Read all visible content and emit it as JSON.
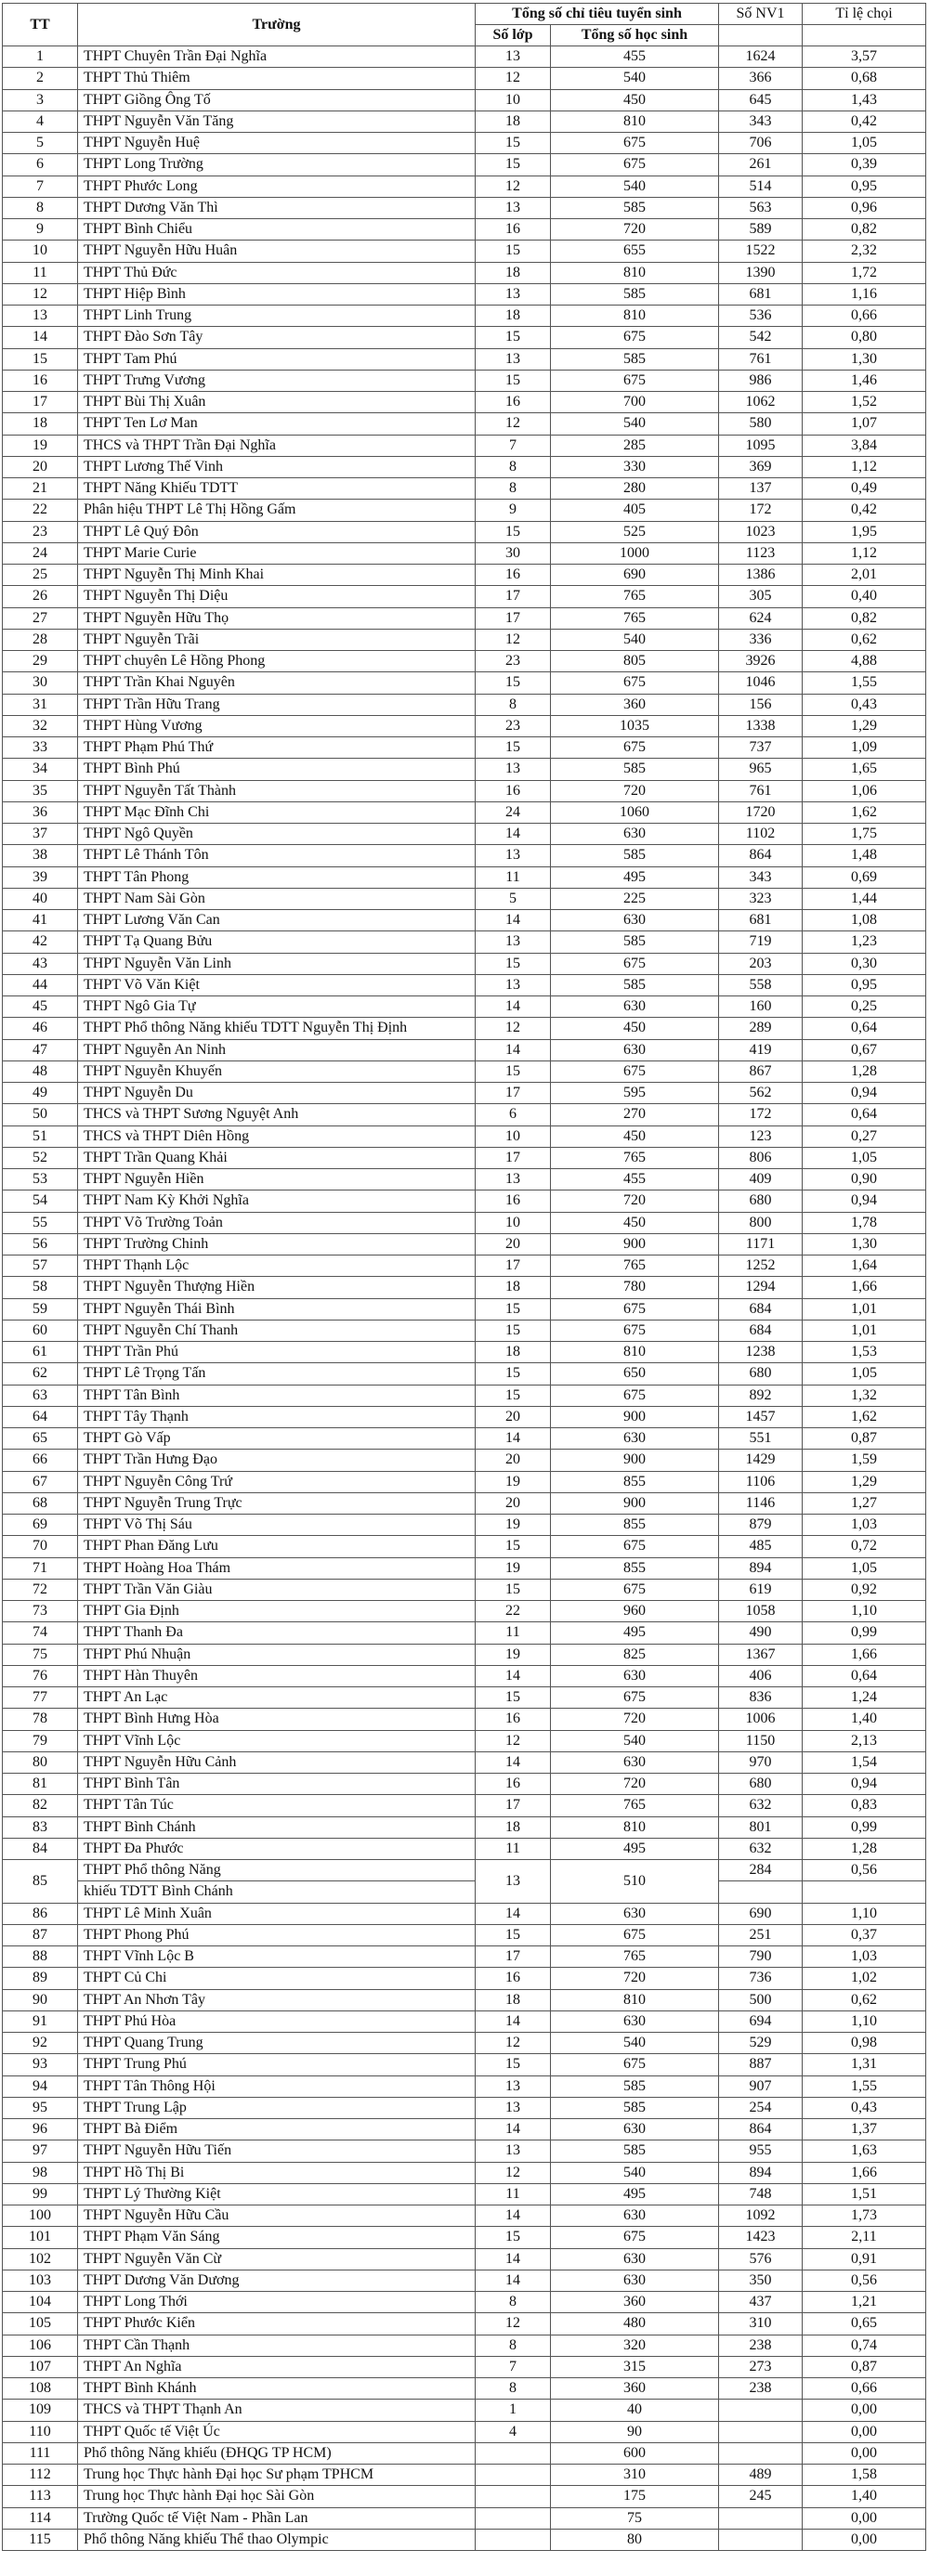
{
  "header": {
    "tt": "TT",
    "truong": "Trường",
    "group": "Tổng số chỉ tiêu tuyển sinh",
    "so_lop": "Số lớp",
    "tong_hs": "Tổng số học sinh",
    "nv1": "Số NV1",
    "ti_le": "Tỉ lệ chọi"
  },
  "rows": [
    [
      "1",
      "THPT Chuyên Trần Đại Nghĩa",
      "13",
      "455",
      "1624",
      "3,57"
    ],
    [
      "2",
      "THPT Thủ Thiêm",
      "12",
      "540",
      "366",
      "0,68"
    ],
    [
      "3",
      "THPT Giồng Ông Tố",
      "10",
      "450",
      "645",
      "1,43"
    ],
    [
      "4",
      "THPT Nguyễn Văn Tăng",
      "18",
      "810",
      "343",
      "0,42"
    ],
    [
      "5",
      "THPT Nguyễn Huệ",
      "15",
      "675",
      "706",
      "1,05"
    ],
    [
      "6",
      "THPT Long Trường",
      "15",
      "675",
      "261",
      "0,39"
    ],
    [
      "7",
      "THPT Phước Long",
      "12",
      "540",
      "514",
      "0,95"
    ],
    [
      "8",
      "THPT Dương Văn Thì",
      "13",
      "585",
      "563",
      "0,96"
    ],
    [
      "9",
      "THPT Bình Chiểu",
      "16",
      "720",
      "589",
      "0,82"
    ],
    [
      "10",
      "THPT Nguyễn Hữu Huân",
      "15",
      "655",
      "1522",
      "2,32"
    ],
    [
      "11",
      "THPT Thủ Đức",
      "18",
      "810",
      "1390",
      "1,72"
    ],
    [
      "12",
      "THPT Hiệp Bình",
      "13",
      "585",
      "681",
      "1,16"
    ],
    [
      "13",
      "THPT Linh Trung",
      "18",
      "810",
      "536",
      "0,66"
    ],
    [
      "14",
      "THPT Đào Sơn Tây",
      "15",
      "675",
      "542",
      "0,80"
    ],
    [
      "15",
      "THPT Tam Phú",
      "13",
      "585",
      "761",
      "1,30"
    ],
    [
      "16",
      "THPT Trưng Vương",
      "15",
      "675",
      "986",
      "1,46"
    ],
    [
      "17",
      "THPT Bùi Thị Xuân",
      "16",
      "700",
      "1062",
      "1,52"
    ],
    [
      "18",
      "THPT Ten Lơ Man",
      "12",
      "540",
      "580",
      "1,07"
    ],
    [
      "19",
      "THCS và THPT Trần Đại Nghĩa",
      "7",
      "285",
      "1095",
      "3,84"
    ],
    [
      "20",
      "THPT Lương Thế Vinh",
      "8",
      "330",
      "369",
      "1,12"
    ],
    [
      "21",
      "THPT Năng Khiếu TDTT",
      "8",
      "280",
      "137",
      "0,49"
    ],
    [
      "22",
      "Phân hiệu THPT Lê Thị Hồng Gấm",
      "9",
      "405",
      "172",
      "0,42"
    ],
    [
      "23",
      "THPT Lê Quý Đôn",
      "15",
      "525",
      "1023",
      "1,95"
    ],
    [
      "24",
      "THPT Marie Curie",
      "30",
      "1000",
      "1123",
      "1,12"
    ],
    [
      "25",
      "THPT Nguyễn Thị Minh Khai",
      "16",
      "690",
      "1386",
      "2,01"
    ],
    [
      "26",
      "THPT Nguyễn Thị Diệu",
      "17",
      "765",
      "305",
      "0,40"
    ],
    [
      "27",
      "THPT Nguyễn Hữu Thọ",
      "17",
      "765",
      "624",
      "0,82"
    ],
    [
      "28",
      "THPT Nguyễn Trãi",
      "12",
      "540",
      "336",
      "0,62"
    ],
    [
      "29",
      "THPT chuyên Lê Hồng Phong",
      "23",
      "805",
      "3926",
      "4,88"
    ],
    [
      "30",
      "THPT Trần Khai Nguyên",
      "15",
      "675",
      "1046",
      "1,55"
    ],
    [
      "31",
      "THPT Trần Hữu Trang",
      "8",
      "360",
      "156",
      "0,43"
    ],
    [
      "32",
      "THPT Hùng Vương",
      "23",
      "1035",
      "1338",
      "1,29"
    ],
    [
      "33",
      "THPT Phạm Phú Thứ",
      "15",
      "675",
      "737",
      "1,09"
    ],
    [
      "34",
      "THPT Bình Phú",
      "13",
      "585",
      "965",
      "1,65"
    ],
    [
      "35",
      "THPT Nguyễn Tất Thành",
      "16",
      "720",
      "761",
      "1,06"
    ],
    [
      "36",
      "THPT Mạc Đĩnh Chi",
      "24",
      "1060",
      "1720",
      "1,62"
    ],
    [
      "37",
      "THPT Ngô Quyền",
      "14",
      "630",
      "1102",
      "1,75"
    ],
    [
      "38",
      "THPT Lê Thánh Tôn",
      "13",
      "585",
      "864",
      "1,48"
    ],
    [
      "39",
      "THPT Tân Phong",
      "11",
      "495",
      "343",
      "0,69"
    ],
    [
      "40",
      "THPT Nam Sài Gòn",
      "5",
      "225",
      "323",
      "1,44"
    ],
    [
      "41",
      "THPT Lương Văn Can",
      "14",
      "630",
      "681",
      "1,08"
    ],
    [
      "42",
      "THPT Tạ Quang Bửu",
      "13",
      "585",
      "719",
      "1,23"
    ],
    [
      "43",
      "THPT Nguyễn Văn Linh",
      "15",
      "675",
      "203",
      "0,30"
    ],
    [
      "44",
      "THPT Võ Văn Kiệt",
      "13",
      "585",
      "558",
      "0,95"
    ],
    [
      "45",
      "THPT Ngô Gia Tự",
      "14",
      "630",
      "160",
      "0,25"
    ],
    [
      "46",
      "THPT Phổ thông Năng khiếu TDTT Nguyễn Thị Định",
      "12",
      "450",
      "289",
      "0,64"
    ],
    [
      "47",
      "THPT Nguyễn An Ninh",
      "14",
      "630",
      "419",
      "0,67"
    ],
    [
      "48",
      "THPT Nguyễn Khuyến",
      "15",
      "675",
      "867",
      "1,28"
    ],
    [
      "49",
      "THPT Nguyễn Du",
      "17",
      "595",
      "562",
      "0,94"
    ],
    [
      "50",
      "THCS và THPT Sương Nguyệt Anh",
      "6",
      "270",
      "172",
      "0,64"
    ],
    [
      "51",
      "THCS và THPT Diên Hồng",
      "10",
      "450",
      "123",
      "0,27"
    ],
    [
      "52",
      "THPT Trần Quang Khải",
      "17",
      "765",
      "806",
      "1,05"
    ],
    [
      "53",
      "THPT Nguyễn Hiền",
      "13",
      "455",
      "409",
      "0,90"
    ],
    [
      "54",
      "THPT Nam Kỳ Khởi Nghĩa",
      "16",
      "720",
      "680",
      "0,94"
    ],
    [
      "55",
      "THPT Võ Trường Toản",
      "10",
      "450",
      "800",
      "1,78"
    ],
    [
      "56",
      "THPT Trường Chinh",
      "20",
      "900",
      "1171",
      "1,30"
    ],
    [
      "57",
      "THPT Thạnh Lộc",
      "17",
      "765",
      "1252",
      "1,64"
    ],
    [
      "58",
      "THPT Nguyễn Thượng Hiền",
      "18",
      "780",
      "1294",
      "1,66"
    ],
    [
      "59",
      "THPT Nguyễn Thái Bình",
      "15",
      "675",
      "684",
      "1,01"
    ],
    [
      "60",
      "THPT Nguyễn Chí Thanh",
      "15",
      "675",
      "684",
      "1,01"
    ],
    [
      "61",
      "THPT Trần Phú",
      "18",
      "810",
      "1238",
      "1,53"
    ],
    [
      "62",
      "THPT Lê Trọng Tấn",
      "15",
      "650",
      "680",
      "1,05"
    ],
    [
      "63",
      "THPT Tân Bình",
      "15",
      "675",
      "892",
      "1,32"
    ],
    [
      "64",
      "THPT Tây Thạnh",
      "20",
      "900",
      "1457",
      "1,62"
    ],
    [
      "65",
      "THPT Gò Vấp",
      "14",
      "630",
      "551",
      "0,87"
    ],
    [
      "66",
      "THPT Trần Hưng Đạo",
      "20",
      "900",
      "1429",
      "1,59"
    ],
    [
      "67",
      "THPT Nguyễn Công Trứ",
      "19",
      "855",
      "1106",
      "1,29"
    ],
    [
      "68",
      "THPT Nguyễn Trung Trực",
      "20",
      "900",
      "1146",
      "1,27"
    ],
    [
      "69",
      "THPT Võ Thị Sáu",
      "19",
      "855",
      "879",
      "1,03"
    ],
    [
      "70",
      "THPT Phan Đăng Lưu",
      "15",
      "675",
      "485",
      "0,72"
    ],
    [
      "71",
      "THPT Hoàng Hoa Thám",
      "19",
      "855",
      "894",
      "1,05"
    ],
    [
      "72",
      "THPT Trần Văn Giàu",
      "15",
      "675",
      "619",
      "0,92"
    ],
    [
      "73",
      "THPT Gia Định",
      "22",
      "960",
      "1058",
      "1,10"
    ],
    [
      "74",
      "THPT Thanh Đa",
      "11",
      "495",
      "490",
      "0,99"
    ],
    [
      "75",
      "THPT Phú Nhuận",
      "19",
      "825",
      "1367",
      "1,66"
    ],
    [
      "76",
      "THPT Hàn Thuyên",
      "14",
      "630",
      "406",
      "0,64"
    ],
    [
      "77",
      "THPT An Lạc",
      "15",
      "675",
      "836",
      "1,24"
    ],
    [
      "78",
      "THPT Bình Hưng Hòa",
      "16",
      "720",
      "1006",
      "1,40"
    ],
    [
      "79",
      "THPT Vĩnh Lộc",
      "12",
      "540",
      "1150",
      "2,13"
    ],
    [
      "80",
      "THPT Nguyễn Hữu Cảnh",
      "14",
      "630",
      "970",
      "1,54"
    ],
    [
      "81",
      "THPT Bình Tân",
      "16",
      "720",
      "680",
      "0,94"
    ],
    [
      "82",
      "THPT Tân Túc",
      "17",
      "765",
      "632",
      "0,83"
    ],
    [
      "83",
      "THPT Bình Chánh",
      "18",
      "810",
      "801",
      "0,99"
    ],
    [
      "84",
      "THPT Đa Phước",
      "11",
      "495",
      "632",
      "1,28"
    ],
    [
      "85",
      [
        "THPT Phổ thông Năng",
        "khiếu TDTT Bình Chánh"
      ],
      "13",
      "510",
      "284",
      "0,56"
    ],
    [
      "86",
      "THPT Lê Minh Xuân",
      "14",
      "630",
      "690",
      "1,10"
    ],
    [
      "87",
      "THPT Phong Phú",
      "15",
      "675",
      "251",
      "0,37"
    ],
    [
      "88",
      "THPT Vĩnh Lộc B",
      "17",
      "765",
      "790",
      "1,03"
    ],
    [
      "89",
      "THPT Củ Chi",
      "16",
      "720",
      "736",
      "1,02"
    ],
    [
      "90",
      "THPT An Nhơn Tây",
      "18",
      "810",
      "500",
      "0,62"
    ],
    [
      "91",
      "THPT Phú Hòa",
      "14",
      "630",
      "694",
      "1,10"
    ],
    [
      "92",
      "THPT Quang Trung",
      "12",
      "540",
      "529",
      "0,98"
    ],
    [
      "93",
      "THPT Trung Phú",
      "15",
      "675",
      "887",
      "1,31"
    ],
    [
      "94",
      "THPT Tân Thông Hội",
      "13",
      "585",
      "907",
      "1,55"
    ],
    [
      "95",
      "THPT Trung Lập",
      "13",
      "585",
      "254",
      "0,43"
    ],
    [
      "96",
      "THPT Bà Điểm",
      "14",
      "630",
      "864",
      "1,37"
    ],
    [
      "97",
      "THPT Nguyễn Hữu Tiến",
      "13",
      "585",
      "955",
      "1,63"
    ],
    [
      "98",
      "THPT Hồ Thị Bi",
      "12",
      "540",
      "894",
      "1,66"
    ],
    [
      "99",
      "THPT Lý Thường Kiệt",
      "11",
      "495",
      "748",
      "1,51"
    ],
    [
      "100",
      "THPT Nguyễn Hữu Cầu",
      "14",
      "630",
      "1092",
      "1,73"
    ],
    [
      "101",
      "THPT Phạm Văn Sáng",
      "15",
      "675",
      "1423",
      "2,11"
    ],
    [
      "102",
      "THPT Nguyễn Văn Cừ",
      "14",
      "630",
      "576",
      "0,91"
    ],
    [
      "103",
      "THPT Dương Văn Dương",
      "14",
      "630",
      "350",
      "0,56"
    ],
    [
      "104",
      "THPT Long Thới",
      "8",
      "360",
      "437",
      "1,21"
    ],
    [
      "105",
      "THPT Phước Kiển",
      "12",
      "480",
      "310",
      "0,65"
    ],
    [
      "106",
      "THPT Cần Thạnh",
      "8",
      "320",
      "238",
      "0,74"
    ],
    [
      "107",
      "THPT An Nghĩa",
      "7",
      "315",
      "273",
      "0,87"
    ],
    [
      "108",
      "THPT Bình Khánh",
      "8",
      "360",
      "238",
      "0,66"
    ],
    [
      "109",
      "THCS và THPT Thạnh An",
      "1",
      "40",
      "",
      "0,00"
    ],
    [
      "110",
      "THPT Quốc tế Việt Úc",
      "4",
      "90",
      "",
      "0,00"
    ],
    [
      "111",
      "Phổ thông Năng khiếu (ĐHQG TP HCM)",
      "",
      "600",
      "",
      "0,00"
    ],
    [
      "112",
      "Trung học Thực hành Đại học Sư phạm TPHCM",
      "",
      "310",
      "489",
      "1,58"
    ],
    [
      "113",
      "Trung học Thực hành Đại học Sài Gòn",
      "",
      "175",
      "245",
      "1,40"
    ],
    [
      "114",
      "Trường Quốc tế Việt Nam - Phần Lan",
      "",
      "75",
      "",
      "0,00"
    ],
    [
      "115",
      "Phổ thông Năng khiếu Thể thao Olympic",
      "",
      "80",
      "",
      "0,00"
    ]
  ]
}
